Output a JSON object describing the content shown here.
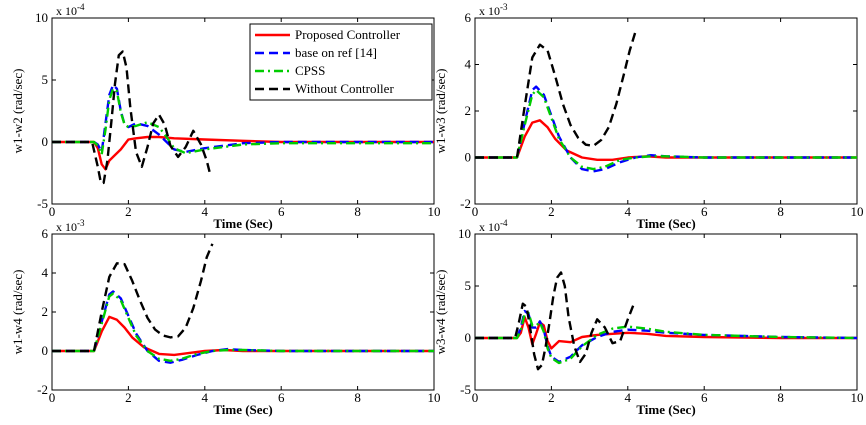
{
  "legend": [
    {
      "label": "Proposed Controller",
      "color": "#ff0000",
      "dash": "solid"
    },
    {
      "label": "base on ref [14]",
      "color": "#0000ff",
      "dash": "dash"
    },
    {
      "label": "CPSS",
      "color": "#00cc00",
      "dash": "dashdot"
    },
    {
      "label": "Without Controller",
      "color": "#000000",
      "dash": "dash"
    }
  ],
  "chart_data": [
    {
      "type": "line",
      "title": "",
      "xlabel": "Time (Sec)",
      "ylabel": "w1-w2 (rad/sec)",
      "exponent": "x 10",
      "exponent_power": "-4",
      "xlim": [
        0,
        10
      ],
      "ylim": [
        -5,
        10
      ],
      "xticks": [
        "0",
        "2",
        "4",
        "6",
        "8",
        "10"
      ],
      "yticks": [
        "-5",
        "0",
        "5",
        "10"
      ],
      "legend_position": "top-right",
      "series": [
        {
          "name": "Proposed Controller",
          "x": [
            0,
            1.1,
            1.2,
            1.3,
            1.4,
            1.5,
            1.6,
            1.8,
            2.0,
            2.2,
            2.5,
            2.8,
            3.2,
            4,
            5,
            6,
            8,
            10
          ],
          "y": [
            0,
            0,
            -0.5,
            -1.8,
            -2.2,
            -1.5,
            -1.2,
            -0.6,
            0.2,
            0.3,
            0.4,
            0.4,
            0.3,
            0.2,
            0.1,
            0,
            0,
            0
          ]
        },
        {
          "name": "base on ref [14]",
          "x": [
            0,
            1.1,
            1.2,
            1.3,
            1.4,
            1.5,
            1.6,
            1.7,
            1.8,
            1.9,
            2.0,
            2.2,
            2.5,
            2.8,
            3.0,
            3.2,
            3.5,
            4,
            5,
            6,
            8,
            10
          ],
          "y": [
            0,
            0,
            -0.2,
            -0.8,
            1.5,
            3.8,
            4.6,
            4.3,
            2.5,
            1.4,
            1.2,
            1.5,
            1.3,
            0.6,
            0.0,
            -0.6,
            -0.8,
            -0.5,
            -0.1,
            0,
            0,
            0
          ]
        },
        {
          "name": "CPSS",
          "x": [
            0,
            1.1,
            1.2,
            1.3,
            1.4,
            1.5,
            1.6,
            1.7,
            1.8,
            1.9,
            2.0,
            2.2,
            2.5,
            2.8,
            3.0,
            3.2,
            3.5,
            4,
            5,
            6,
            8,
            10
          ],
          "y": [
            0,
            0,
            -0.3,
            -1.0,
            1.0,
            3.4,
            4.3,
            4.1,
            2.4,
            1.4,
            1.2,
            1.3,
            1.6,
            1.2,
            0.4,
            -0.5,
            -0.9,
            -0.6,
            -0.2,
            -0.1,
            -0.1,
            -0.1
          ]
        },
        {
          "name": "Without Controller",
          "x": [
            0,
            1.05,
            1.2,
            1.28,
            1.35,
            1.45,
            1.55,
            1.65,
            1.75,
            1.85,
            1.95,
            2.05,
            2.2,
            2.35,
            2.5,
            2.65,
            2.8,
            2.95,
            3.1,
            3.3,
            3.5,
            3.7,
            3.9,
            4.05,
            4.15
          ],
          "y": [
            0,
            0,
            -2.0,
            -3.3,
            -3.3,
            -1.5,
            1.5,
            4.7,
            7.0,
            7.3,
            6.0,
            2.8,
            -0.8,
            -2.0,
            -0.4,
            1.5,
            2.2,
            1.4,
            -0.3,
            -1.2,
            -0.4,
            0.9,
            -0.2,
            -1.5,
            -2.7
          ]
        }
      ]
    },
    {
      "type": "line",
      "title": "",
      "xlabel": "Time (Sec)",
      "ylabel": "w1-w3 (rad/sec)",
      "exponent": "x 10",
      "exponent_power": "-3",
      "xlim": [
        0,
        10
      ],
      "ylim": [
        -2,
        6
      ],
      "xticks": [
        "0",
        "2",
        "4",
        "6",
        "8",
        "10"
      ],
      "yticks": [
        "-2",
        "0",
        "2",
        "4",
        "6"
      ],
      "series": [
        {
          "name": "Proposed Controller",
          "x": [
            0,
            1.1,
            1.3,
            1.5,
            1.7,
            1.9,
            2.1,
            2.4,
            2.8,
            3.2,
            3.6,
            4.0,
            4.5,
            5,
            6,
            8,
            10
          ],
          "y": [
            0,
            0,
            0.9,
            1.5,
            1.6,
            1.3,
            0.8,
            0.3,
            0.0,
            -0.1,
            -0.1,
            0,
            0.05,
            0,
            0,
            0,
            0
          ]
        },
        {
          "name": "base on ref [14]",
          "x": [
            0,
            1.1,
            1.3,
            1.5,
            1.6,
            1.8,
            2.0,
            2.2,
            2.5,
            2.8,
            3.1,
            3.4,
            3.8,
            4.2,
            4.6,
            5,
            6,
            8,
            10
          ],
          "y": [
            0,
            0,
            1.5,
            2.9,
            3.05,
            2.7,
            1.8,
            0.9,
            0.0,
            -0.5,
            -0.6,
            -0.5,
            -0.2,
            0.0,
            0.1,
            0.05,
            0,
            0,
            0
          ]
        },
        {
          "name": "CPSS",
          "x": [
            0,
            1.1,
            1.3,
            1.5,
            1.6,
            1.8,
            2.0,
            2.2,
            2.5,
            2.8,
            3.1,
            3.4,
            3.8,
            4.2,
            4.6,
            5,
            6,
            8,
            10
          ],
          "y": [
            0,
            0,
            1.4,
            2.7,
            2.9,
            2.6,
            1.7,
            0.8,
            0.0,
            -0.4,
            -0.5,
            -0.4,
            -0.1,
            0.0,
            0.05,
            0.05,
            0,
            0,
            0
          ]
        },
        {
          "name": "Without Controller",
          "x": [
            0,
            1.1,
            1.3,
            1.5,
            1.7,
            1.9,
            2.1,
            2.3,
            2.5,
            2.7,
            2.9,
            3.1,
            3.3,
            3.5,
            3.7,
            3.9,
            4.05,
            4.2
          ],
          "y": [
            0,
            0,
            2.2,
            4.3,
            4.85,
            4.6,
            3.5,
            2.3,
            1.4,
            0.85,
            0.55,
            0.5,
            0.75,
            1.3,
            2.3,
            3.6,
            4.6,
            5.4
          ]
        }
      ]
    },
    {
      "type": "line",
      "title": "",
      "xlabel": "Time (Sec)",
      "ylabel": "w1-w4 (rad/sec)",
      "exponent": "x 10",
      "exponent_power": "-3",
      "xlim": [
        0,
        10
      ],
      "ylim": [
        -2,
        6
      ],
      "xticks": [
        "0",
        "2",
        "4",
        "6",
        "8",
        "10"
      ],
      "yticks": [
        "-2",
        "0",
        "2",
        "4",
        "6"
      ],
      "series": [
        {
          "name": "Proposed Controller",
          "x": [
            0,
            1.1,
            1.3,
            1.5,
            1.7,
            1.9,
            2.1,
            2.4,
            2.8,
            3.2,
            3.6,
            4.0,
            4.5,
            5,
            6,
            8,
            10
          ],
          "y": [
            0,
            0,
            1.0,
            1.75,
            1.6,
            1.2,
            0.7,
            0.2,
            -0.15,
            -0.2,
            -0.1,
            0.0,
            0.05,
            0,
            0,
            0,
            0
          ]
        },
        {
          "name": "base on ref [14]",
          "x": [
            0,
            1.1,
            1.3,
            1.5,
            1.6,
            1.8,
            2.0,
            2.2,
            2.5,
            2.8,
            3.1,
            3.4,
            3.8,
            4.2,
            4.6,
            5,
            6,
            8,
            10
          ],
          "y": [
            0,
            0,
            1.5,
            2.9,
            3.05,
            2.7,
            1.8,
            0.9,
            0.0,
            -0.5,
            -0.6,
            -0.45,
            -0.2,
            0.0,
            0.1,
            0.05,
            0,
            0,
            0
          ]
        },
        {
          "name": "CPSS",
          "x": [
            0,
            1.1,
            1.3,
            1.5,
            1.6,
            1.8,
            2.0,
            2.2,
            2.5,
            2.8,
            3.1,
            3.4,
            3.8,
            4.2,
            4.6,
            5,
            6,
            8,
            10
          ],
          "y": [
            0,
            0,
            1.4,
            2.8,
            2.95,
            2.6,
            1.7,
            0.8,
            0.0,
            -0.4,
            -0.5,
            -0.4,
            -0.15,
            0.0,
            0.05,
            0.05,
            0,
            0,
            0
          ]
        },
        {
          "name": "Without Controller",
          "x": [
            0,
            1.1,
            1.3,
            1.5,
            1.7,
            1.9,
            2.1,
            2.3,
            2.5,
            2.7,
            2.9,
            3.1,
            3.3,
            3.5,
            3.7,
            3.9,
            4.05,
            4.2
          ],
          "y": [
            0,
            0,
            2.0,
            3.8,
            4.5,
            4.45,
            3.6,
            2.6,
            1.7,
            1.1,
            0.8,
            0.7,
            0.75,
            1.2,
            2.2,
            3.6,
            4.8,
            5.5
          ]
        }
      ]
    },
    {
      "type": "line",
      "title": "",
      "xlabel": "Time (Sec)",
      "ylabel": "w3-w4 (rad/sec)",
      "exponent": "x 10",
      "exponent_power": "-4",
      "xlim": [
        0,
        10
      ],
      "ylim": [
        -5,
        10
      ],
      "xticks": [
        "0",
        "2",
        "4",
        "6",
        "8",
        "10"
      ],
      "yticks": [
        "-5",
        "0",
        "5",
        "10"
      ],
      "series": [
        {
          "name": "Proposed Controller",
          "x": [
            0,
            1.1,
            1.2,
            1.3,
            1.4,
            1.5,
            1.6,
            1.7,
            1.8,
            1.9,
            2.0,
            2.2,
            2.5,
            2.8,
            3.2,
            3.6,
            4.0,
            4.5,
            5,
            6,
            8,
            10
          ],
          "y": [
            0,
            0,
            0.5,
            2.0,
            1.0,
            -0.6,
            0.4,
            1.5,
            1.2,
            -0.3,
            -1.0,
            -0.3,
            -0.4,
            0.1,
            0.3,
            0.4,
            0.5,
            0.4,
            0.2,
            0.1,
            0,
            0
          ]
        },
        {
          "name": "base on ref [14]",
          "x": [
            0,
            1.1,
            1.2,
            1.3,
            1.4,
            1.5,
            1.6,
            1.7,
            1.8,
            1.9,
            2.0,
            2.2,
            2.5,
            2.8,
            3.2,
            3.6,
            4.0,
            4.5,
            5,
            6,
            8,
            10
          ],
          "y": [
            0,
            0,
            1.0,
            2.6,
            2.3,
            1.0,
            1.0,
            1.6,
            0.8,
            -0.8,
            -1.8,
            -2.3,
            -1.8,
            -0.7,
            0.1,
            0.6,
            0.8,
            0.7,
            0.5,
            0.3,
            0.1,
            0.0
          ]
        },
        {
          "name": "CPSS",
          "x": [
            0,
            1.1,
            1.2,
            1.3,
            1.4,
            1.5,
            1.6,
            1.7,
            1.8,
            1.9,
            2.0,
            2.2,
            2.5,
            2.8,
            3.2,
            3.6,
            4.0,
            4.5,
            5,
            6,
            8,
            10
          ],
          "y": [
            0,
            0,
            0.8,
            2.3,
            2.4,
            1.2,
            1.2,
            1.5,
            0.6,
            -1.0,
            -1.9,
            -2.4,
            -2.0,
            -0.8,
            0.3,
            0.9,
            1.1,
            0.9,
            0.6,
            0.3,
            0.1,
            0.0
          ]
        },
        {
          "name": "Without Controller",
          "x": [
            0,
            1.05,
            1.15,
            1.25,
            1.35,
            1.45,
            1.55,
            1.65,
            1.75,
            1.85,
            1.95,
            2.05,
            2.15,
            2.25,
            2.35,
            2.45,
            2.6,
            2.75,
            2.9,
            3.05,
            3.2,
            3.4,
            3.6,
            3.8,
            4.0,
            4.15
          ],
          "y": [
            0,
            0,
            1.5,
            3.3,
            3.0,
            0.8,
            -1.6,
            -3.0,
            -2.6,
            -0.8,
            1.5,
            4.0,
            5.8,
            6.3,
            5.0,
            2.0,
            -0.8,
            -2.3,
            -1.5,
            0.5,
            1.8,
            1.0,
            -0.5,
            -0.3,
            1.8,
            3.2
          ]
        }
      ]
    }
  ]
}
